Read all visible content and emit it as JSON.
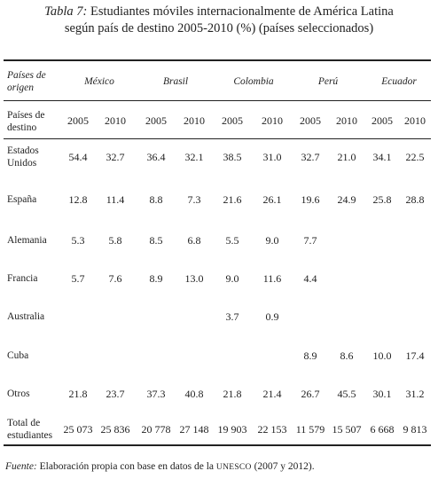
{
  "title": {
    "label": "Tabla 7:",
    "line1": "Estudiantes móviles internacionalmente de América Latina",
    "line2": "según país de destino 2005-2010 (%) (países seleccionados)"
  },
  "header": {
    "origin_label_1": "Países de",
    "origin_label_2": "origen",
    "dest_label_1": "Países de",
    "dest_label_2": "destino",
    "countries": [
      "México",
      "Brasil",
      "Colombia",
      "Perú",
      "Ecuador"
    ],
    "years": [
      "2005",
      "2010",
      "2005",
      "2010",
      "2005",
      "2010",
      "2005",
      "2010",
      "2005",
      "2010"
    ]
  },
  "rows": [
    {
      "label1": "Estados",
      "label2": "Unidos",
      "values": [
        "54.4",
        "32.7",
        "36.4",
        "32.1",
        "38.5",
        "31.0",
        "32.7",
        "21.0",
        "34.1",
        "22.5"
      ]
    },
    {
      "label1": "España",
      "label2": "",
      "values": [
        "12.8",
        "11.4",
        "8.8",
        "7.3",
        "21.6",
        "26.1",
        "19.6",
        "24.9",
        "25.8",
        "28.8"
      ]
    },
    {
      "label1": "Alemania",
      "label2": "",
      "values": [
        "5.3",
        "5.8",
        "8.5",
        "6.8",
        "5.5",
        "9.0",
        "7.7",
        "",
        "",
        ""
      ]
    },
    {
      "label1": "Francia",
      "label2": "",
      "values": [
        "5.7",
        "7.6",
        "8.9",
        "13.0",
        "9.0",
        "11.6",
        "4.4",
        "",
        "",
        ""
      ]
    },
    {
      "label1": "Australia",
      "label2": "",
      "values": [
        "",
        "",
        "",
        "",
        "3.7",
        "0.9",
        "",
        "",
        "",
        ""
      ]
    },
    {
      "label1": "Cuba",
      "label2": "",
      "values": [
        "",
        "",
        "",
        "",
        "",
        "",
        "8.9",
        "8.6",
        "10.0",
        "17.4"
      ]
    },
    {
      "label1": "Otros",
      "label2": "",
      "values": [
        "21.8",
        "23.7",
        "37.3",
        "40.8",
        "21.8",
        "21.4",
        "26.7",
        "45.5",
        "30.1",
        "31.2"
      ]
    },
    {
      "label1": "Total de",
      "label2": "estudiantes",
      "values": [
        "25 073",
        "25 836",
        "20 778",
        "27 148",
        "19 903",
        "22 153",
        "11 579",
        "15 507",
        "6 668",
        "9 813"
      ]
    }
  ],
  "footnote": {
    "label": "Fuente:",
    "text_before": "Elaboración propia con base en datos de la",
    "org": "UNESCO",
    "text_after": "(2007 y 2012)."
  }
}
